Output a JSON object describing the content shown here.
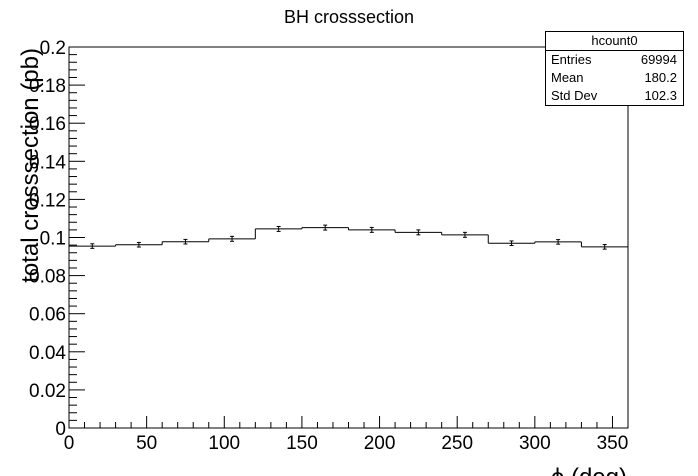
{
  "chart_data": {
    "type": "histogram",
    "title": "BH crosssection",
    "xlabel": "ϕ (deg)",
    "ylabel": "total crosssection (pb)",
    "xlim": [
      0,
      360
    ],
    "ylim": [
      0,
      0.2
    ],
    "x_ticks": [
      "0",
      "50",
      "100",
      "150",
      "200",
      "250",
      "300",
      "350"
    ],
    "y_ticks": [
      "0",
      "0.02",
      "0.04",
      "0.06",
      "0.08",
      "0.1",
      "0.12",
      "0.14",
      "0.16",
      "0.18",
      "0.2"
    ],
    "bin_width": 30,
    "bin_edges": [
      0,
      30,
      60,
      90,
      120,
      150,
      180,
      210,
      240,
      270,
      300,
      330,
      360
    ],
    "values": [
      0.0955,
      0.0962,
      0.0978,
      0.0993,
      0.1045,
      0.1052,
      0.104,
      0.1027,
      0.1014,
      0.097,
      0.0977,
      0.0951
    ],
    "errors": [
      0.0012,
      0.0012,
      0.0012,
      0.0013,
      0.0013,
      0.0013,
      0.0013,
      0.0013,
      0.0013,
      0.0012,
      0.0012,
      0.0012
    ],
    "grid": false,
    "legend": "none"
  },
  "stats": {
    "title": "hcount0",
    "rows": [
      {
        "label": "Entries",
        "value": "69994"
      },
      {
        "label": "Mean",
        "value": "180.2"
      },
      {
        "label": "Std Dev",
        "value": "102.3"
      }
    ]
  }
}
